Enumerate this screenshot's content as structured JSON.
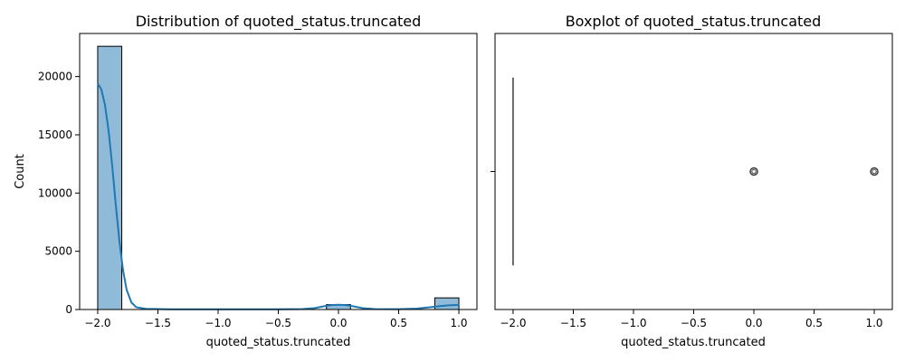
{
  "chart_data": [
    {
      "type": "bar",
      "title": "Distribution of quoted_status.truncated",
      "xlabel": "quoted_status.truncated",
      "ylabel": "Count",
      "xlim": [
        -2.15,
        1.15
      ],
      "ylim": [
        0,
        23700
      ],
      "xticks": [
        -2.0,
        -1.5,
        -1.0,
        -0.5,
        0.0,
        0.5,
        1.0
      ],
      "xtick_labels": [
        "−2.0",
        "−1.5",
        "−1.0",
        "−0.5",
        "0.0",
        "0.5",
        "1.0"
      ],
      "yticks": [
        0,
        5000,
        10000,
        15000,
        20000
      ],
      "ytick_labels": [
        "0",
        "5000",
        "10000",
        "15000",
        "20000"
      ],
      "bars": [
        {
          "x0": -2.0,
          "x1": -1.8,
          "value": 22600
        },
        {
          "x0": -0.1,
          "x1": 0.1,
          "value": 420
        },
        {
          "x0": 0.8,
          "x1": 1.0,
          "value": 1000
        }
      ],
      "bar_color": "#8fbbd9",
      "kde_color": "#1f77b4",
      "kde": [
        [
          -2.0,
          19400
        ],
        [
          -1.97,
          18900
        ],
        [
          -1.94,
          17600
        ],
        [
          -1.91,
          15400
        ],
        [
          -1.88,
          12400
        ],
        [
          -1.85,
          9000
        ],
        [
          -1.82,
          5900
        ],
        [
          -1.79,
          3400
        ],
        [
          -1.76,
          1700
        ],
        [
          -1.72,
          600
        ],
        [
          -1.68,
          200
        ],
        [
          -1.6,
          60
        ],
        [
          -1.4,
          20
        ],
        [
          -1.0,
          15
        ],
        [
          -0.5,
          20
        ],
        [
          -0.3,
          40
        ],
        [
          -0.2,
          120
        ],
        [
          -0.12,
          280
        ],
        [
          -0.06,
          380
        ],
        [
          0.0,
          410
        ],
        [
          0.06,
          380
        ],
        [
          0.12,
          280
        ],
        [
          0.2,
          120
        ],
        [
          0.3,
          40
        ],
        [
          0.5,
          30
        ],
        [
          0.65,
          80
        ],
        [
          0.75,
          180
        ],
        [
          0.85,
          300
        ],
        [
          0.93,
          370
        ],
        [
          1.0,
          390
        ]
      ],
      "grid": false,
      "legend": "none"
    },
    {
      "type": "box",
      "title": "Boxplot of quoted_status.truncated",
      "xlabel": "quoted_status.truncated",
      "xlim": [
        -2.15,
        1.15
      ],
      "xticks": [
        -2.0,
        -1.5,
        -1.0,
        -0.5,
        0.0,
        0.5,
        1.0
      ],
      "xtick_labels": [
        "−2.0",
        "−1.5",
        "−1.0",
        "−0.5",
        "0.0",
        "0.5",
        "1.0"
      ],
      "median": -2.0,
      "q1": -2.0,
      "q3": -2.0,
      "whisker_low": -2.0,
      "whisker_high": -2.0,
      "outliers": [
        0.0,
        1.0
      ],
      "grid": false,
      "legend": "none"
    }
  ]
}
